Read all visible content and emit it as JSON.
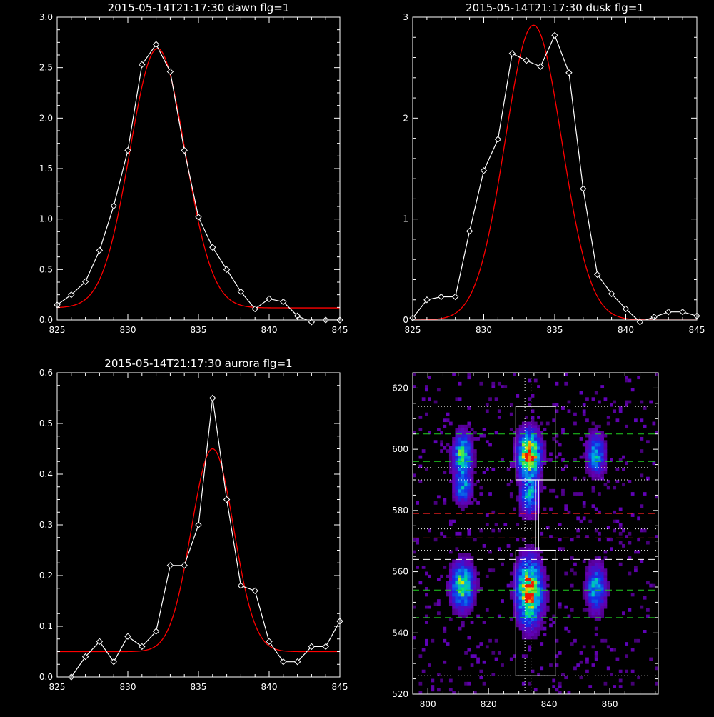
{
  "colors": {
    "background": "#000000",
    "data": "#ffffff",
    "fit": "#ff0000",
    "gridlines": "#ffffff"
  },
  "chart_data": [
    {
      "id": "dawn",
      "type": "line",
      "title": "2015-05-14T21:17:30 dawn flg=1",
      "xlim": [
        825,
        845
      ],
      "ylim": [
        0,
        3.0
      ],
      "xticks": [
        825,
        830,
        835,
        840,
        845
      ],
      "xtick_labels": [
        "825",
        "830",
        "835",
        "840",
        "845"
      ],
      "yticks": [
        0,
        0.5,
        1.0,
        1.5,
        2.0,
        2.5,
        3.0
      ],
      "ytick_labels": [
        "0.0",
        "0.5",
        "1.0",
        "1.5",
        "2.0",
        "2.5",
        "3.0"
      ],
      "series": [
        {
          "kind": "data",
          "marker": "diamond",
          "x": [
            825,
            826,
            827,
            828,
            829,
            830,
            831,
            832,
            833,
            834,
            835,
            836,
            837,
            838,
            839,
            840,
            841,
            842,
            843,
            844,
            845
          ],
          "y": [
            0.15,
            0.25,
            0.38,
            0.69,
            1.13,
            1.68,
            2.53,
            2.73,
            2.46,
            1.68,
            1.02,
            0.72,
            0.5,
            0.28,
            0.11,
            0.21,
            0.18,
            0.04,
            -0.02,
            0.0,
            0.0
          ]
        },
        {
          "kind": "fit",
          "model": "gaussian",
          "amplitude": 2.57,
          "center": 832.1,
          "sigma": 1.95,
          "offset": 0.12
        }
      ]
    },
    {
      "id": "dusk",
      "type": "line",
      "title": "2015-05-14T21:17:30 dusk flg=1",
      "xlim": [
        825,
        845
      ],
      "ylim": [
        0,
        3
      ],
      "xticks": [
        825,
        830,
        835,
        840,
        845
      ],
      "xtick_labels": [
        "825",
        "830",
        "835",
        "840",
        "845"
      ],
      "yticks": [
        0,
        1,
        2,
        3
      ],
      "ytick_labels": [
        "0",
        "1",
        "2",
        "3"
      ],
      "series": [
        {
          "kind": "data",
          "marker": "diamond",
          "x": [
            825,
            826,
            827,
            828,
            829,
            830,
            831,
            832,
            833,
            834,
            835,
            836,
            837,
            838,
            839,
            840,
            841,
            842,
            843,
            844,
            845
          ],
          "y": [
            0.02,
            0.2,
            0.23,
            0.23,
            0.88,
            1.48,
            1.79,
            2.64,
            2.57,
            2.51,
            2.82,
            2.45,
            1.3,
            0.45,
            0.26,
            0.11,
            -0.02,
            0.03,
            0.08,
            0.08,
            0.04
          ]
        },
        {
          "kind": "fit",
          "model": "gaussian",
          "amplitude": 2.92,
          "center": 833.5,
          "sigma": 2.0,
          "offset": 0.0
        }
      ]
    },
    {
      "id": "aurora",
      "type": "line",
      "title": "2015-05-14T21:17:30 aurora flg=1",
      "xlim": [
        825,
        845
      ],
      "ylim": [
        0,
        0.6
      ],
      "xticks": [
        825,
        830,
        835,
        840,
        845
      ],
      "xtick_labels": [
        "825",
        "830",
        "835",
        "840",
        "845"
      ],
      "yticks": [
        0,
        0.1,
        0.2,
        0.3,
        0.4,
        0.5,
        0.6
      ],
      "ytick_labels": [
        "0.0",
        "0.1",
        "0.2",
        "0.3",
        "0.4",
        "0.5",
        "0.6"
      ],
      "series": [
        {
          "kind": "data",
          "marker": "diamond",
          "x": [
            826,
            827,
            828,
            829,
            830,
            831,
            832,
            833,
            834,
            835,
            836,
            837,
            838,
            839,
            840,
            841,
            842,
            843,
            844,
            845
          ],
          "y": [
            0.0,
            0.04,
            0.07,
            0.03,
            0.08,
            0.06,
            0.09,
            0.22,
            0.22,
            0.3,
            0.55,
            0.35,
            0.18,
            0.17,
            0.07,
            0.03,
            0.03,
            0.06,
            0.06,
            0.11
          ]
        },
        {
          "kind": "fit",
          "model": "gaussian",
          "amplitude": 0.4,
          "center": 836.0,
          "sigma": 1.5,
          "offset": 0.05
        }
      ]
    },
    {
      "id": "image",
      "type": "heatmap",
      "title": "",
      "xlim": [
        795,
        876
      ],
      "ylim": [
        520,
        625
      ],
      "xticks": [
        800,
        820,
        840,
        860
      ],
      "xtick_labels": [
        "800",
        "820",
        "840",
        "860"
      ],
      "yticks": [
        520,
        540,
        560,
        580,
        600,
        620
      ],
      "ytick_labels": [
        "520",
        "540",
        "560",
        "580",
        "600",
        "620"
      ],
      "colormap": "rainbow",
      "blobs": [
        {
          "x": 811,
          "y": 598,
          "sx": 2.0,
          "sy": 4.5,
          "amp": 0.7
        },
        {
          "x": 811,
          "y": 587,
          "sx": 2.0,
          "sy": 3.5,
          "amp": 0.5
        },
        {
          "x": 811,
          "y": 555,
          "sx": 2.5,
          "sy": 5.0,
          "amp": 0.75
        },
        {
          "x": 833,
          "y": 598,
          "sx": 2.5,
          "sy": 5.0,
          "amp": 1.0
        },
        {
          "x": 833,
          "y": 584,
          "sx": 2.0,
          "sy": 4.0,
          "amp": 0.55
        },
        {
          "x": 833,
          "y": 553,
          "sx": 2.8,
          "sy": 7.0,
          "amp": 1.0
        },
        {
          "x": 855,
          "y": 598,
          "sx": 2.0,
          "sy": 4.5,
          "amp": 0.55
        },
        {
          "x": 855,
          "y": 554,
          "sx": 2.0,
          "sy": 5.0,
          "amp": 0.6
        }
      ],
      "dotted_horizontal_lines": [
        526,
        567,
        574,
        590,
        594,
        614
      ],
      "dotted_vertical_lines": [
        832,
        834
      ],
      "green_dashed_lines": [
        545,
        554,
        596,
        605
      ],
      "white_dashed_lines": [
        564
      ],
      "red_dashed_lines": [
        571,
        579
      ],
      "white_boxes": [
        {
          "x0": 829,
          "x1": 842,
          "y0": 590,
          "y1": 614
        },
        {
          "x0": 829,
          "x1": 842,
          "y0": 526,
          "y1": 567
        }
      ],
      "connector_x": [
        835.5,
        836.5
      ],
      "connector_y": [
        567,
        590
      ]
    }
  ]
}
